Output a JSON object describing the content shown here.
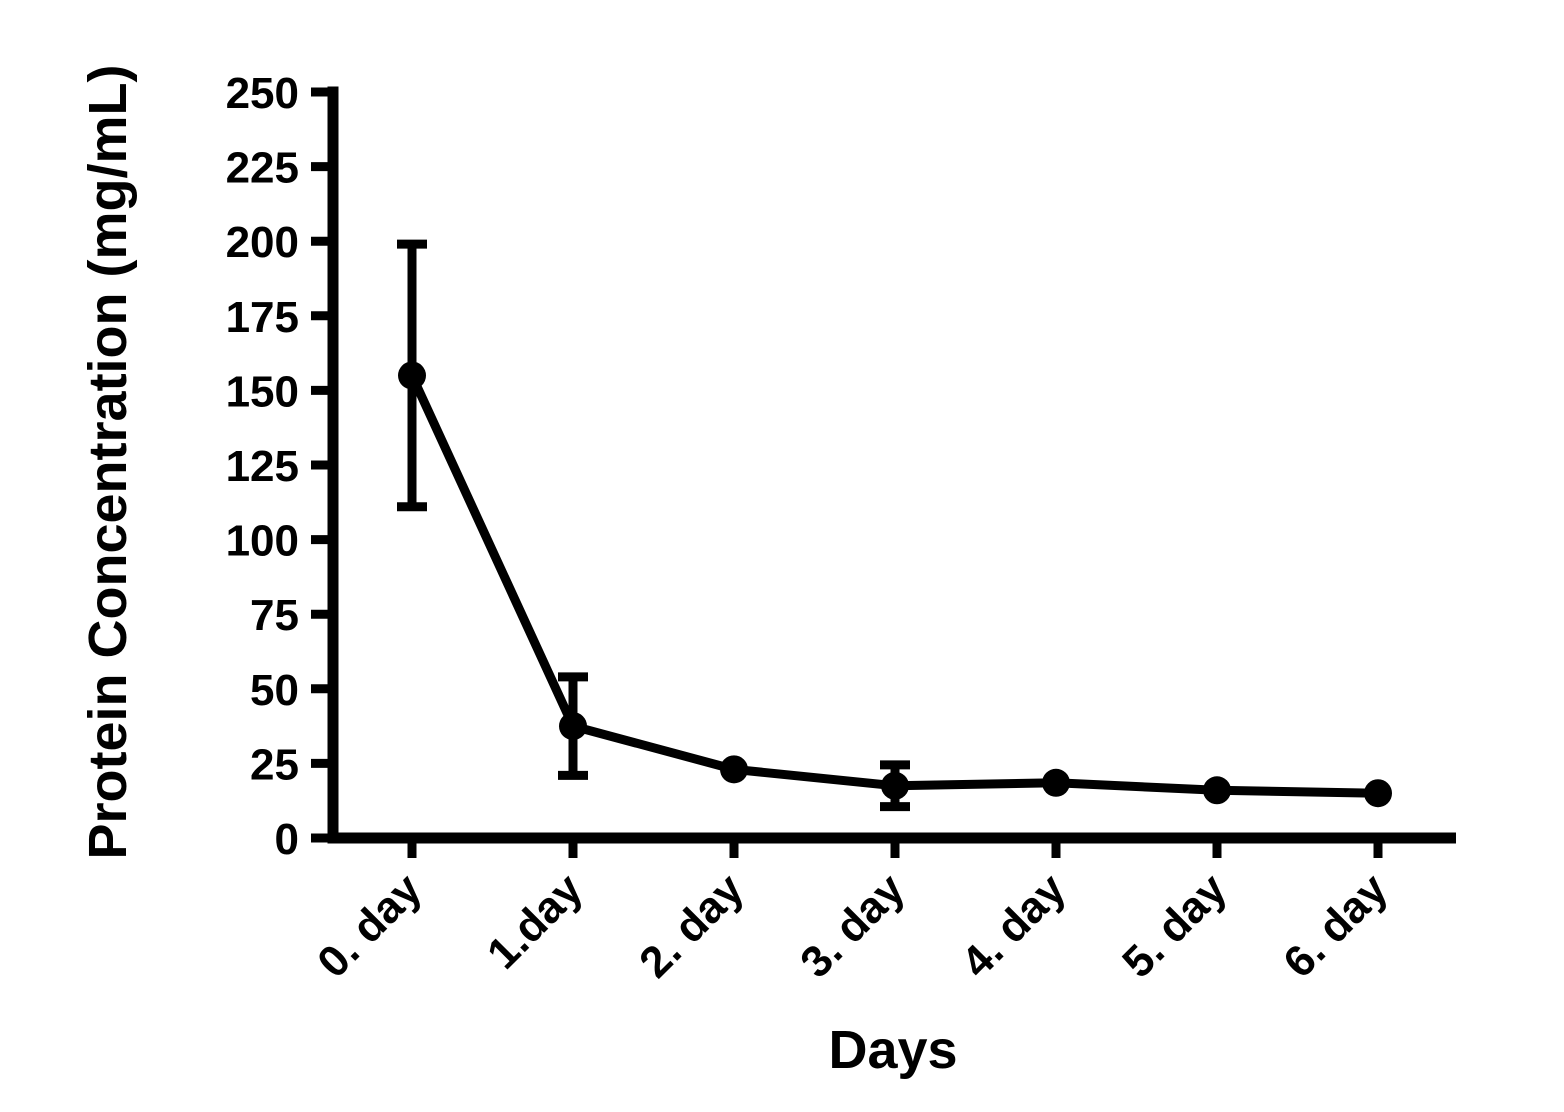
{
  "figure": {
    "background_color": "#ffffff",
    "ink_color": "#000000"
  },
  "chart_data": {
    "type": "line",
    "title": "",
    "xlabel": "Days",
    "ylabel": "Protein Concentration (mg/mL)",
    "categories": [
      "0. day",
      "1.day",
      "2. day",
      "3. day",
      "4. day",
      "5. day",
      "6. day"
    ],
    "series": [
      {
        "name": "Protein Concentration",
        "values": [
          155,
          37.5,
          23,
          17.5,
          18.5,
          16,
          15
        ],
        "error_bars_sd": [
          44,
          16.5,
          0,
          7,
          0,
          0,
          0
        ]
      }
    ],
    "ylim": [
      0,
      250
    ],
    "yticks": [
      0,
      25,
      50,
      75,
      100,
      125,
      150,
      175,
      200,
      225,
      250
    ],
    "ytick_step": 25,
    "x_tick_label_rotation_deg": -45,
    "marker_style": "filled-circle",
    "error_bar_caps": true,
    "grid": false,
    "legend_position": "none"
  }
}
